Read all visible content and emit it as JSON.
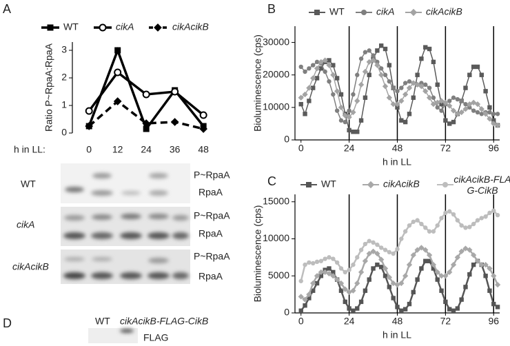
{
  "panel_labels": [
    "A",
    "B",
    "C",
    "D"
  ],
  "chart_data": [
    {
      "type": "line",
      "xlabel": "h in LL:",
      "ylabel": "Ratio P~RpaA:RpaA",
      "x": [
        0,
        12,
        24,
        36,
        48
      ],
      "xlim": [
        -7,
        52
      ],
      "xticks": [
        0,
        12,
        24,
        36,
        48
      ],
      "ylim": [
        0,
        3.3
      ],
      "yticks": [
        0,
        1,
        2,
        3
      ],
      "series": [
        {
          "name": "WT",
          "color": "#000000",
          "marker": "square",
          "line_style": "solid",
          "values": [
            0.25,
            3.0,
            0.15,
            1.55,
            0.25
          ]
        },
        {
          "name": "cikA",
          "color": "#000000",
          "marker": "circle-open",
          "line_style": "solid",
          "values": [
            0.8,
            2.2,
            1.4,
            1.5,
            0.65
          ]
        },
        {
          "name": "cikAcikB",
          "color": "#000000",
          "marker": "diamond",
          "line_style": "dashed",
          "values": [
            0.25,
            1.15,
            0.35,
            0.4,
            0.15
          ]
        }
      ]
    },
    {
      "type": "line",
      "xlabel": "h in LL",
      "ylabel": "Bioluminescence (cps)",
      "x": [
        0,
        2,
        4,
        6,
        8,
        10,
        12,
        14,
        16,
        18,
        20,
        22,
        24,
        26,
        28,
        30,
        32,
        34,
        36,
        38,
        40,
        42,
        44,
        46,
        48,
        50,
        52,
        54,
        56,
        58,
        60,
        62,
        64,
        66,
        68,
        70,
        72,
        74,
        76,
        78,
        80,
        82,
        84,
        86,
        88,
        90,
        92,
        94,
        96,
        98
      ],
      "xlim": [
        -3,
        99
      ],
      "xticks": [
        0,
        24,
        48,
        72,
        96
      ],
      "vlines": [
        24,
        48,
        72,
        96
      ],
      "ylim": [
        0,
        35000
      ],
      "yticks": [
        0,
        10000,
        20000,
        30000
      ],
      "series": [
        {
          "name": "WT",
          "color": "#5a5a5a",
          "marker": "square",
          "line_style": "solid",
          "values": [
            11000,
            8000,
            12000,
            16000,
            19000,
            22000,
            24000,
            24500,
            23000,
            19000,
            14000,
            8000,
            3000,
            2500,
            2500,
            6000,
            13000,
            20000,
            25000,
            27500,
            29000,
            28000,
            23000,
            16000,
            10000,
            6000,
            5500,
            8000,
            13000,
            20000,
            25000,
            28500,
            28000,
            24000,
            17000,
            11000,
            6000,
            5000,
            5500,
            8000,
            12000,
            16000,
            20000,
            22500,
            22500,
            20000,
            15000,
            10000,
            6000,
            4500
          ]
        },
        {
          "name": "cikA",
          "color": "#7f7f7f",
          "marker": "circle",
          "line_style": "solid",
          "values": [
            22500,
            21000,
            22000,
            23000,
            24000,
            23500,
            21000,
            18000,
            14000,
            9000,
            6000,
            5500,
            9000,
            14000,
            20000,
            25000,
            27000,
            27500,
            26000,
            24000,
            22000,
            20000,
            18000,
            16000,
            15000,
            16000,
            17500,
            18000,
            17500,
            17000,
            17500,
            17000,
            16000,
            13000,
            10000,
            9000,
            11000,
            12000,
            13000,
            12500,
            12000,
            11000,
            10000,
            9000,
            8500,
            8000,
            8500,
            8500,
            8000,
            8000
          ]
        },
        {
          "name": "cikAcikB",
          "color": "#a3a3a3",
          "marker": "diamond",
          "line_style": "solid",
          "values": [
            13000,
            14000,
            16000,
            19000,
            22000,
            24000,
            24500,
            23000,
            20000,
            15000,
            10000,
            7500,
            7000,
            8500,
            12000,
            17000,
            21000,
            24000,
            24500,
            23000,
            20000,
            16500,
            13000,
            11000,
            11000,
            12000,
            14000,
            16000,
            17500,
            17000,
            16500,
            15000,
            13000,
            11000,
            11500,
            12000,
            11500,
            10500,
            9000,
            8000,
            8500,
            9500,
            11000,
            11500,
            11000,
            9500,
            8000,
            6500,
            5000,
            4500
          ]
        }
      ]
    },
    {
      "type": "line",
      "xlabel": "h in LL",
      "ylabel": "Bioluminescence (cps)",
      "x": [
        0,
        2,
        4,
        6,
        8,
        10,
        12,
        14,
        16,
        18,
        20,
        22,
        24,
        26,
        28,
        30,
        32,
        34,
        36,
        38,
        40,
        42,
        44,
        46,
        48,
        50,
        52,
        54,
        56,
        58,
        60,
        62,
        64,
        66,
        68,
        70,
        72,
        74,
        76,
        78,
        80,
        82,
        84,
        86,
        88,
        90,
        92,
        94,
        96,
        98
      ],
      "xlim": [
        -3,
        99
      ],
      "xticks": [
        0,
        24,
        48,
        72,
        96
      ],
      "vlines": [
        24,
        48,
        72,
        96
      ],
      "ylim": [
        0,
        16000
      ],
      "yticks": [
        0,
        5000,
        10000,
        15000
      ],
      "series": [
        {
          "name": "WT",
          "color": "#555555",
          "marker": "square",
          "line_style": "solid",
          "values": [
            300,
            1000,
            2000,
            3000,
            4000,
            5000,
            5800,
            6000,
            5500,
            4500,
            3000,
            1500,
            600,
            300,
            600,
            1500,
            3000,
            4500,
            6000,
            6500,
            6200,
            5000,
            3500,
            2000,
            800,
            300,
            500,
            1200,
            2800,
            4500,
            6000,
            7000,
            7000,
            6000,
            4500,
            3000,
            1500,
            500,
            300,
            600,
            1800,
            3500,
            5200,
            6500,
            7000,
            6500,
            5000,
            3000,
            1200,
            800
          ]
        },
        {
          "name": "cikAcikB",
          "color": "#a8a8a8",
          "marker": "diamond",
          "line_style": "solid",
          "values": [
            2200,
            1800,
            2500,
            4000,
            5000,
            5500,
            5500,
            5300,
            5000,
            4500,
            4000,
            3200,
            2800,
            3000,
            4000,
            5500,
            7000,
            8000,
            8300,
            8000,
            7200,
            6000,
            4800,
            4000,
            3800,
            4000,
            5000,
            6500,
            7800,
            8500,
            8800,
            8500,
            7800,
            6500,
            5500,
            5000,
            5000,
            5500,
            6500,
            7500,
            8300,
            8700,
            8500,
            7800,
            7000,
            6500,
            6500,
            6000,
            5000,
            3800
          ]
        },
        {
          "name": "cikAcikB-FLAG-CikB",
          "color": "#bdbdbd",
          "marker": "circle",
          "line_style": "solid",
          "values": [
            4300,
            6500,
            6800,
            6700,
            6900,
            7000,
            7300,
            7500,
            7300,
            6800,
            6000,
            5500,
            5800,
            6500,
            7500,
            8500,
            9300,
            9700,
            9500,
            9200,
            8800,
            8500,
            8200,
            8000,
            8600,
            10000,
            11000,
            11800,
            12300,
            12500,
            12000,
            11500,
            11000,
            11000,
            11800,
            12800,
            13500,
            13700,
            13300,
            12500,
            11800,
            11500,
            11600,
            12000,
            12500,
            12800,
            13000,
            13500,
            13800,
            13200
          ]
        }
      ]
    }
  ],
  "blots": [
    {
      "strain": "WT",
      "bands": [
        "P~RpaA",
        "RpaA"
      ]
    },
    {
      "strain": "cikA",
      "bands": [
        "P~RpaA",
        "RpaA"
      ]
    },
    {
      "strain": "cikAcikB",
      "bands": [
        "P~RpaA",
        "RpaA"
      ]
    }
  ],
  "flag_blot": {
    "lanes": [
      "WT",
      "cikAcikB-FLAG-CikB"
    ],
    "band": "FLAG"
  }
}
